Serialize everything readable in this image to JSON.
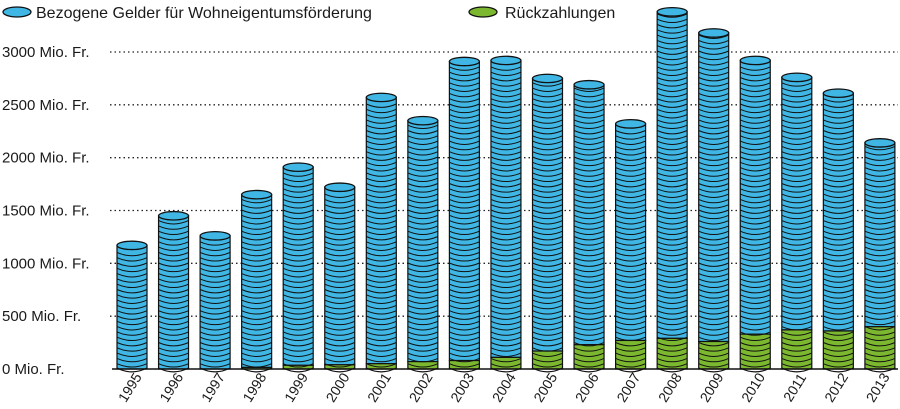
{
  "chart_data": {
    "type": "bar",
    "stacked": true,
    "title": "",
    "xlabel": "",
    "ylabel": "",
    "ylim": [
      0,
      3300
    ],
    "yticks": [
      0,
      500,
      1000,
      1500,
      2000,
      2500,
      3000
    ],
    "ytick_labels": [
      "0 Mio. Fr.",
      "500 Mio. Fr.",
      "1000 Mio. Fr.",
      "1500 Mio. Fr.",
      "2000 Mio. Fr.",
      "2500 Mio. Fr.",
      "3000 Mio. Fr."
    ],
    "grid": true,
    "legend_position": "top-left",
    "categories": [
      "1995",
      "1996",
      "1997",
      "1998",
      "1999",
      "2000",
      "2001",
      "2002",
      "2003",
      "2004",
      "2005",
      "2006",
      "2007",
      "2008",
      "2009",
      "2010",
      "2011",
      "2012",
      "2013"
    ],
    "series": [
      {
        "name": "Rückzahlungen",
        "color": "#7cb82f",
        "values": [
          0,
          0,
          0,
          15,
          35,
          40,
          50,
          70,
          80,
          110,
          170,
          230,
          270,
          290,
          260,
          330,
          370,
          360,
          400
        ]
      },
      {
        "name": "Bezogene Gelder für Wohneigentumsförderung",
        "color": "#3fb6e4",
        "values": [
          1170,
          1450,
          1260,
          1635,
          1875,
          1680,
          2520,
          2280,
          2830,
          2810,
          2580,
          2460,
          2050,
          3090,
          2920,
          2590,
          2390,
          2250,
          1740
        ]
      }
    ],
    "legend": [
      {
        "label": "Bezogene Gelder für Wohneigentumsförderung",
        "color": "#3fb6e4"
      },
      {
        "label": "Rückzahlungen",
        "color": "#7cb82f"
      }
    ]
  }
}
